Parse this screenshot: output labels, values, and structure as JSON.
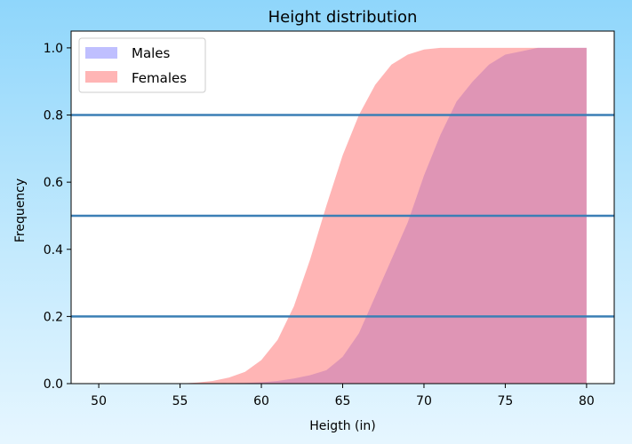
{
  "chart_data": {
    "type": "area",
    "title": "Height distribution",
    "xlabel": "Heigth (in)",
    "ylabel": "Frequency",
    "xlim": [
      48.3,
      81.7
    ],
    "ylim": [
      0.0,
      1.05
    ],
    "xticks": [
      50,
      55,
      60,
      65,
      70,
      75,
      80
    ],
    "yticks": [
      0.0,
      0.2,
      0.4,
      0.6,
      0.8,
      1.0
    ],
    "xtick_labels": [
      "50",
      "55",
      "60",
      "65",
      "70",
      "75",
      "80"
    ],
    "ytick_labels": [
      "0.0",
      "0.2",
      "0.4",
      "0.6",
      "0.8",
      "1.0"
    ],
    "hlines": [
      0.2,
      0.5,
      0.8
    ],
    "hline_color": "#3b7fb5",
    "grid": false,
    "legend_position": "top-left",
    "series": [
      {
        "name": "Males",
        "color": "#5f5fff",
        "opacity": 0.4,
        "x": [
          55,
          57,
          59,
          60,
          61,
          62,
          63,
          64,
          65,
          66,
          67,
          68,
          69,
          70,
          71,
          72,
          73,
          74,
          75,
          76,
          77,
          78,
          79,
          80
        ],
        "y": [
          0.0,
          0.001,
          0.002,
          0.004,
          0.008,
          0.015,
          0.025,
          0.04,
          0.08,
          0.15,
          0.26,
          0.37,
          0.48,
          0.62,
          0.74,
          0.84,
          0.9,
          0.95,
          0.98,
          0.99,
          1.0,
          1.0,
          1.0,
          1.0
        ]
      },
      {
        "name": "Females",
        "color": "#ff6b6b",
        "opacity": 0.5,
        "x": [
          55,
          56,
          57,
          58,
          59,
          60,
          61,
          62,
          63,
          64,
          65,
          66,
          67,
          68,
          69,
          70,
          71,
          72,
          73,
          80
        ],
        "y": [
          0.0,
          0.003,
          0.008,
          0.018,
          0.035,
          0.07,
          0.13,
          0.23,
          0.37,
          0.53,
          0.68,
          0.8,
          0.89,
          0.95,
          0.98,
          0.995,
          1.0,
          1.0,
          1.0,
          1.0
        ]
      }
    ]
  }
}
